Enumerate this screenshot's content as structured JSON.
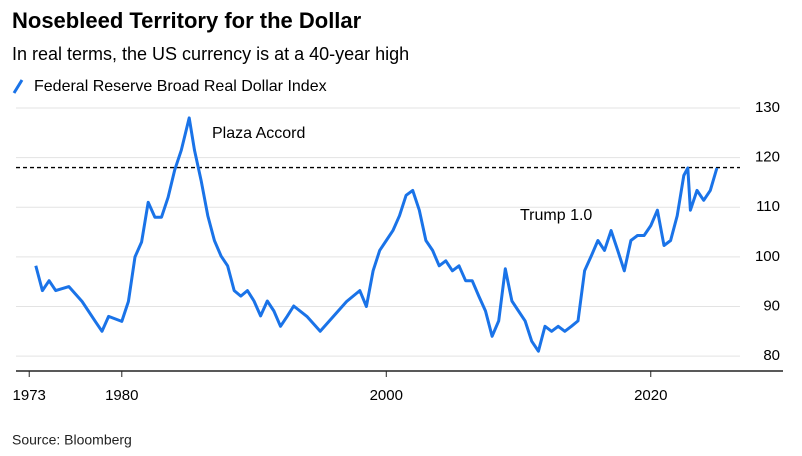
{
  "chart_data": {
    "type": "line",
    "title": "Nosebleed Territory for the Dollar",
    "subtitle": "In real terms, the US currency is at a 40-year high",
    "source": "Source: Bloomberg",
    "annotations": [
      "Plaza Accord",
      "Trump 1.0"
    ],
    "reference_line": 118,
    "x": [
      1973.5,
      1974,
      1974.5,
      1975,
      1976,
      1977,
      1978,
      1978.5,
      1979,
      1980,
      1980.5,
      1981,
      1981.5,
      1982,
      1982.5,
      1983,
      1983.5,
      1984,
      1984.5,
      1985.1,
      1985.5,
      1986,
      1986.5,
      1987,
      1987.5,
      1988,
      1988.5,
      1989,
      1989.5,
      1990,
      1990.5,
      1991,
      1991.5,
      1992,
      1992.5,
      1993,
      1994,
      1995,
      1996,
      1997,
      1998,
      1998.5,
      1999,
      1999.5,
      2000,
      2000.5,
      2001,
      2001.5,
      2002,
      2002.5,
      2003,
      2003.5,
      2004,
      2004.5,
      2005,
      2005.5,
      2006,
      2006.5,
      2007,
      2007.5,
      2008,
      2008.5,
      2009,
      2009.5,
      2010,
      2010.5,
      2011,
      2011.5,
      2012,
      2012.5,
      2013,
      2013.5,
      2014,
      2014.5,
      2015,
      2015.5,
      2016,
      2016.5,
      2017,
      2017.5,
      2018,
      2018.5,
      2019,
      2019.5,
      2020,
      2020.5,
      2021,
      2021.5,
      2022,
      2022.5,
      2022.8,
      2023,
      2023.5,
      2024,
      2024.5,
      2025
    ],
    "series": [
      {
        "name": "Federal Reserve Broad Real Dollar Index",
        "color": "#1a73e8",
        "values": [
          98.2,
          93.2,
          95.2,
          93.2,
          94,
          91,
          87,
          85,
          88,
          87,
          91,
          100,
          103,
          111,
          108,
          108,
          112,
          117.5,
          121.5,
          128,
          121.5,
          115.4,
          108.3,
          103.3,
          100.2,
          98.2,
          93.2,
          92.1,
          93.2,
          91.1,
          88.1,
          91.1,
          89.1,
          86,
          88,
          90.1,
          88,
          85,
          88,
          91,
          93.2,
          90,
          97.2,
          101.3,
          103.3,
          105.3,
          108.3,
          112.4,
          113.4,
          109.4,
          103.3,
          101.3,
          98.2,
          99.2,
          97.2,
          98.2,
          95.2,
          95.2,
          92.1,
          89.1,
          84,
          87.1,
          97.6,
          91.1,
          89.1,
          87.1,
          83,
          81,
          86,
          85,
          86,
          85,
          86,
          87.1,
          97.2,
          100.2,
          103.3,
          101.3,
          105.3,
          101.3,
          97.2,
          103.3,
          104.3,
          104.3,
          106.3,
          109.4,
          102.3,
          103.3,
          108.3,
          116.4,
          117.9,
          109.4,
          113.4,
          111.4,
          113.4,
          117.9
        ]
      }
    ],
    "xlim": [
      1972,
      2030
    ],
    "xticks": [
      1973,
      1980,
      2000,
      2020
    ],
    "ylim": [
      77,
      130
    ],
    "yticks": [
      80,
      90,
      100,
      110,
      120,
      130
    ],
    "grid": true,
    "legend": "top-left"
  }
}
